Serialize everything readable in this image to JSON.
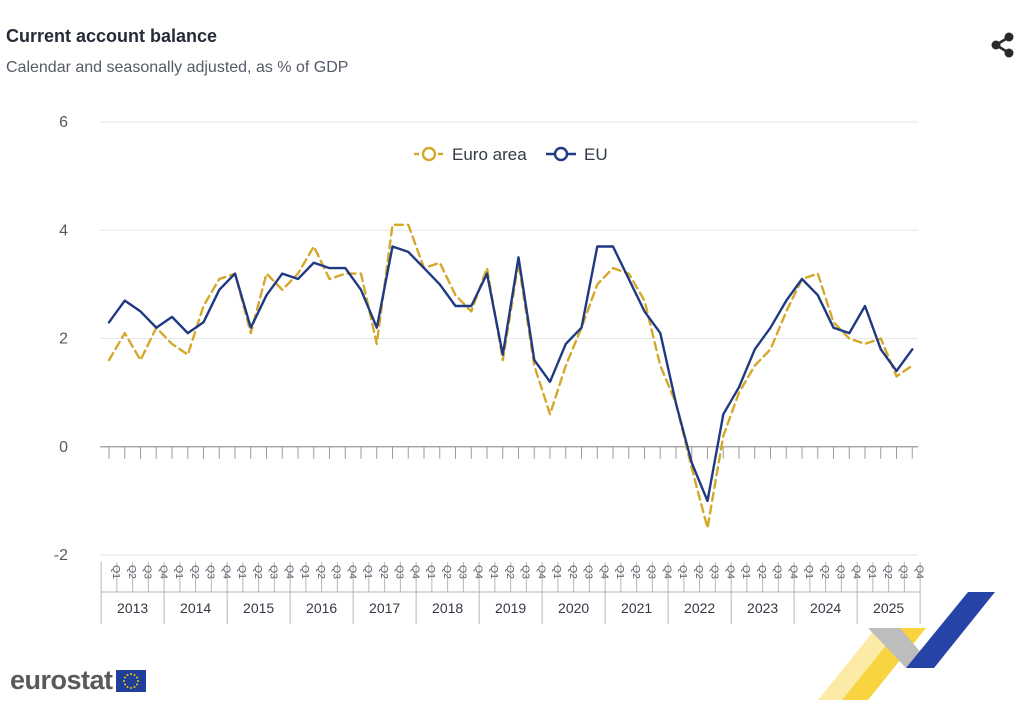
{
  "header": {
    "title": "Current account balance",
    "subtitle": "Calendar and seasonally adjusted, as % of GDP"
  },
  "share": {
    "icon": "share-icon"
  },
  "brand": {
    "logo_text": "eurostat",
    "accent_yellow": "#f6c700",
    "accent_blue": "#2644a7"
  },
  "chart_data": {
    "type": "line",
    "ylim": [
      -2,
      6
    ],
    "yticks": [
      -2,
      0,
      2,
      4,
      6
    ],
    "grid": true,
    "legend_position": "top-center",
    "years": [
      "2013",
      "2014",
      "2015",
      "2016",
      "2017",
      "2018",
      "2019",
      "2020",
      "2021",
      "2022",
      "2023",
      "2024",
      "2025"
    ],
    "quarters": [
      "Q1",
      "Q2",
      "Q3",
      "Q4"
    ],
    "series": [
      {
        "name": "Euro area",
        "color": "#d4a82a",
        "style": "dashed",
        "values": [
          1.6,
          2.1,
          1.6,
          2.2,
          1.9,
          1.7,
          2.6,
          3.1,
          3.2,
          2.1,
          3.2,
          2.9,
          3.2,
          3.7,
          3.1,
          3.2,
          3.2,
          1.9,
          4.1,
          4.1,
          3.3,
          3.4,
          2.8,
          2.5,
          3.3,
          1.6,
          3.4,
          1.5,
          0.6,
          1.5,
          2.2,
          3.0,
          3.3,
          3.2,
          2.7,
          1.5,
          0.8,
          -0.4,
          -1.5,
          0.2,
          1.0,
          1.5,
          1.8,
          2.5,
          3.1,
          3.2,
          2.3,
          2.0,
          1.9,
          2.0,
          1.3,
          1.5
        ]
      },
      {
        "name": "EU",
        "color": "#1f3a82",
        "style": "solid",
        "values": [
          2.3,
          2.7,
          2.5,
          2.2,
          2.4,
          2.1,
          2.3,
          2.9,
          3.2,
          2.2,
          2.8,
          3.2,
          3.1,
          3.4,
          3.3,
          3.3,
          2.9,
          2.2,
          3.7,
          3.6,
          3.3,
          3.0,
          2.6,
          2.6,
          3.2,
          1.7,
          3.5,
          1.6,
          1.2,
          1.9,
          2.2,
          3.7,
          3.7,
          3.1,
          2.5,
          2.1,
          0.8,
          -0.3,
          -1.0,
          0.6,
          1.1,
          1.8,
          2.2,
          2.7,
          3.1,
          2.8,
          2.2,
          2.1,
          2.6,
          1.8,
          1.4,
          1.8
        ]
      }
    ]
  }
}
